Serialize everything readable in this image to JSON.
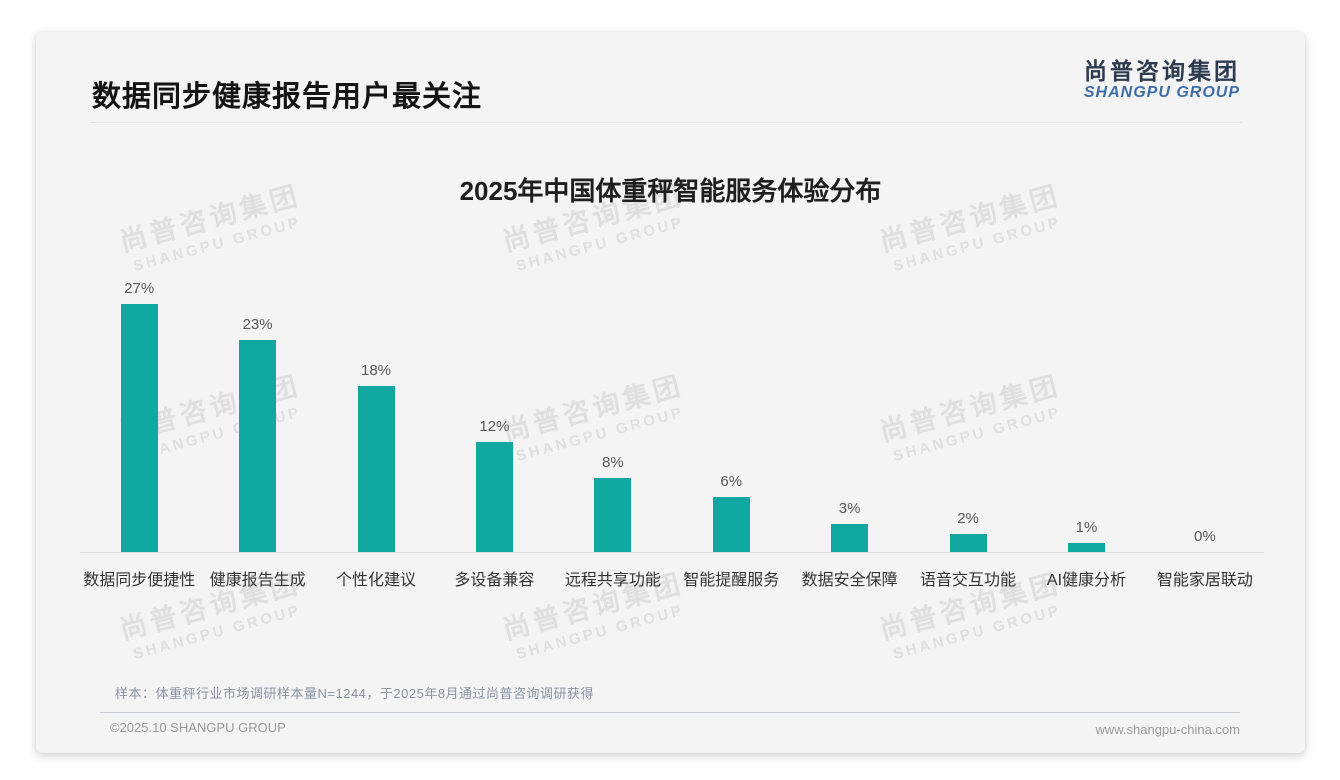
{
  "page": {
    "title": "数据同步健康报告用户最关注",
    "logo": {
      "cn": "尚普咨询集团",
      "en": "SHANGPU GROUP"
    },
    "watermark": {
      "cn": "尚普咨询集团",
      "en": "SHANGPU GROUP"
    },
    "note": "样本：体重秤行业市场调研样本量N=1244，于2025年8月通过尚普咨询调研获得",
    "footer_left": "©2025.10 SHANGPU GROUP",
    "footer_right": "www.shangpu-china.com",
    "colors": {
      "card_bg": "#f4f4f5",
      "bar": "#11a8a2",
      "logo_cn": "#2d3b50",
      "logo_en": "#3e6da6"
    }
  },
  "chart_data": {
    "type": "bar",
    "title": "2025年中国体重秤智能服务体验分布",
    "categories": [
      "数据同步便捷性",
      "健康报告生成",
      "个性化建议",
      "多设备兼容",
      "远程共享功能",
      "智能提醒服务",
      "数据安全保障",
      "语音交互功能",
      "AI健康分析",
      "智能家居联动"
    ],
    "values": [
      27,
      23,
      18,
      12,
      8,
      6,
      3,
      2,
      1,
      0
    ],
    "unit": "%",
    "value_labels": true,
    "bar_color": "#11a8a2",
    "xlabel": "",
    "ylabel": "",
    "ylim": [
      0,
      29
    ],
    "grid": false,
    "legend": "none"
  }
}
